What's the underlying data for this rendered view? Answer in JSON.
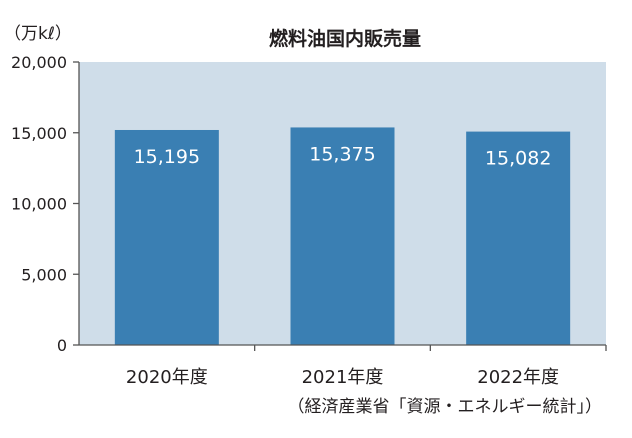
{
  "chart_data": {
    "type": "bar",
    "title": "燃料油国内販売量",
    "ylabel": "（万kℓ）",
    "xlabel": "",
    "categories": [
      "2020年度",
      "2021年度",
      "2022年度"
    ],
    "values": [
      15195,
      15375,
      15082
    ],
    "value_labels": [
      "15,195",
      "15,375",
      "15,082"
    ],
    "ylim": [
      0,
      20000
    ],
    "yticks": [
      0,
      5000,
      10000,
      15000,
      20000
    ],
    "ytick_labels": [
      "0",
      "5,000",
      "10,000",
      "15,000",
      "20,000"
    ],
    "grid": false,
    "legend": "none",
    "source": "（経済産業省「資源・エネルギー統計」）",
    "colors": {
      "plot_background": "#cfdde9",
      "bar": "#3a7fb3",
      "bar_label": "#ffffff",
      "axis": "#555555",
      "text": "#231f20"
    }
  }
}
